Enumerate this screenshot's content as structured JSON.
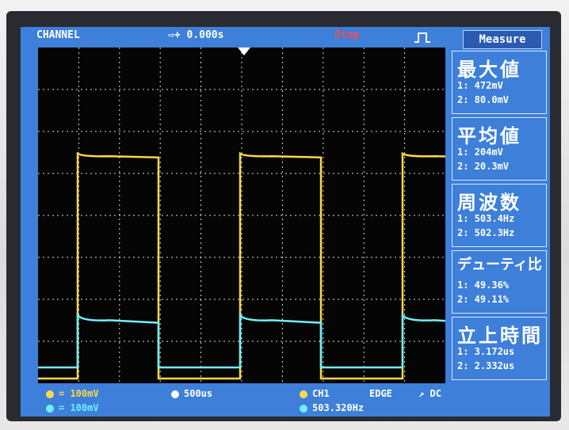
{
  "topbar": {
    "mode": "CHANNEL",
    "time": "⇨+ 0.000s",
    "status": "Stop"
  },
  "panel": {
    "title": "Measure",
    "items": [
      {
        "header": "最大値",
        "v1": "1: 472mV",
        "v2": "2: 80.0mV"
      },
      {
        "header": "平均値",
        "v1": "1: 204mV",
        "v2": "2: 20.3mV"
      },
      {
        "header": "周波数",
        "v1": "1: 503.4Hz",
        "v2": "2: 502.3Hz"
      },
      {
        "header": "デューティ比",
        "v1": "1: 49.36%",
        "v2": "2: 49.11%"
      },
      {
        "header": "立上時間",
        "v1": "1: 3.172us",
        "v2": "2: 2.332us"
      }
    ]
  },
  "bottom": {
    "ch1_scale": "= 100mV",
    "ch2_scale": "= 100mV",
    "timebase": "500us",
    "trigger_source": "CH1",
    "trigger_type": "EDGE",
    "coupling": "DC",
    "frequency": "503.320Hz"
  },
  "colors": {
    "screen": "#3d7fd9",
    "ch1": "#ffd84a",
    "ch2": "#6ff0ff",
    "grid": "#ffffff",
    "stop": "#ff4a4a"
  }
}
